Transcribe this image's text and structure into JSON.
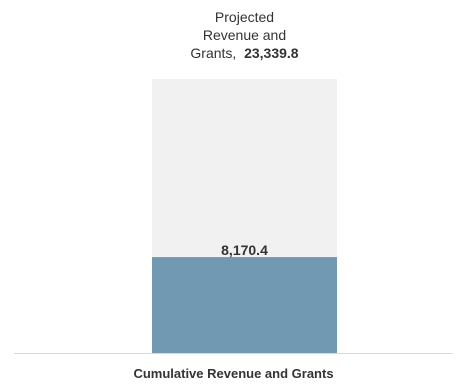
{
  "chart_data": {
    "type": "bar",
    "categories": [
      "Cumulative Revenue and Grants"
    ],
    "series": [
      {
        "name": "Projected Revenue and Grants",
        "values": [
          23339.8
        ],
        "color": "#f1f1f1"
      },
      {
        "name": "",
        "values": [
          8170.4
        ],
        "color": "#7199b2"
      }
    ],
    "projected_label_text": "Projected\nRevenue and\nGrants,",
    "projected_value_text": "23,339.8",
    "cumulative_value_text": "8,170.4",
    "xlabel": "Cumulative Revenue and Grants",
    "ylim": [
      0,
      28000
    ],
    "grid": false,
    "colors": {
      "background_bar": "#f1f1f1",
      "value_bar": "#7199b2",
      "axis_line": "#d9d9d9",
      "text": "#333333"
    }
  }
}
